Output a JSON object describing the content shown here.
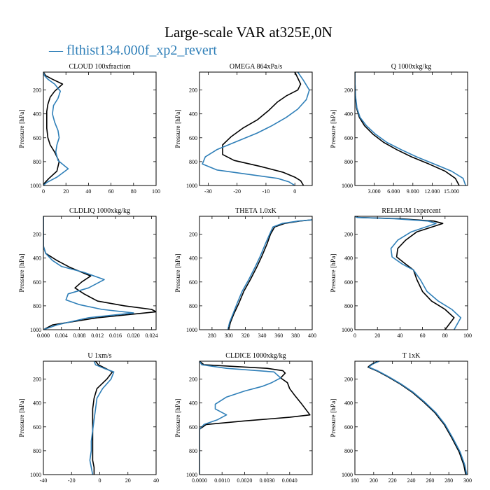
{
  "figure": {
    "title": "Large-scale VAR at325E,0N",
    "legend_text": "— flthist134.000f_xp2_revert",
    "legend_color": "#2f7fb8"
  },
  "chart_data": [
    {
      "type": "line",
      "title": "CLOUD  100xfraction",
      "ylabel": "Pressure [hPa]",
      "xlim": [
        0,
        100
      ],
      "ylim": [
        1000,
        50
      ],
      "xticks": [
        0,
        20,
        40,
        60,
        80,
        100
      ],
      "xtick_labels": [
        "0",
        "20",
        "40",
        "60",
        "80",
        "100"
      ],
      "yticks": [
        200,
        400,
        600,
        800,
        1000
      ],
      "series": [
        {
          "color": "#000000",
          "x": [
            0,
            2,
            8,
            17,
            10,
            6,
            4,
            3,
            3,
            3,
            4,
            6,
            10,
            14,
            12,
            5,
            1,
            0
          ],
          "y": [
            50,
            80,
            110,
            150,
            210,
            260,
            320,
            380,
            450,
            520,
            600,
            660,
            720,
            800,
            880,
            940,
            980,
            1000
          ]
        },
        {
          "color": "#2f7fb8",
          "x": [
            0,
            1,
            4,
            10,
            15,
            13,
            9,
            8,
            10,
            13,
            14,
            12,
            11,
            13,
            22,
            12,
            3,
            0
          ],
          "y": [
            50,
            80,
            110,
            150,
            210,
            270,
            330,
            400,
            470,
            540,
            600,
            660,
            720,
            790,
            860,
            930,
            975,
            1000
          ]
        }
      ]
    },
    {
      "type": "line",
      "title": "OMEGA  864xPa/s",
      "ylabel": "Pressure [hPa]",
      "xlim": [
        -33,
        6
      ],
      "ylim": [
        1000,
        50
      ],
      "xticks": [
        -30,
        -20,
        -10,
        0
      ],
      "xtick_labels": [
        "-30",
        "-20",
        "-10",
        "0"
      ],
      "yticks": [
        200,
        400,
        600,
        800,
        1000
      ],
      "series": [
        {
          "color": "#000000",
          "x": [
            0,
            1,
            2,
            1,
            -3,
            -6,
            -9,
            -13,
            -18,
            -22,
            -25,
            -25,
            -21,
            -12,
            -4,
            0,
            2,
            3
          ],
          "y": [
            50,
            100,
            150,
            200,
            250,
            300,
            370,
            450,
            520,
            590,
            660,
            740,
            790,
            840,
            890,
            930,
            960,
            1000
          ]
        },
        {
          "color": "#2f7fb8",
          "x": [
            1,
            3,
            5,
            4,
            1,
            -3,
            -8,
            -13,
            -20,
            -27,
            -31,
            -32,
            -27,
            -15,
            -6,
            -2,
            0
          ],
          "y": [
            50,
            120,
            200,
            280,
            360,
            430,
            500,
            560,
            630,
            700,
            760,
            820,
            870,
            910,
            940,
            970,
            1000
          ]
        }
      ]
    },
    {
      "type": "line",
      "title": "Q  1000xkg/kg",
      "ylabel": "Pressure [hPa]",
      "xlim": [
        0,
        17500
      ],
      "ylim": [
        1000,
        50
      ],
      "xticks": [
        3000,
        6000,
        9000,
        12000,
        15000
      ],
      "xtick_labels": [
        "3.000",
        "6.000",
        "9.000",
        "12.000",
        "15.000"
      ],
      "yticks": [
        200,
        400,
        600,
        800,
        1000
      ],
      "series": [
        {
          "color": "#000000",
          "x": [
            0,
            20,
            80,
            250,
            700,
            1500,
            2800,
            4500,
            6500,
            8800,
            11500,
            14000,
            15600,
            16200
          ],
          "y": [
            50,
            150,
            250,
            350,
            430,
            500,
            570,
            640,
            700,
            760,
            820,
            880,
            940,
            1000
          ]
        },
        {
          "color": "#2f7fb8",
          "x": [
            0,
            25,
            100,
            320,
            800,
            1800,
            3200,
            5000,
            7200,
            9600,
            12300,
            15000,
            16800,
            17200
          ],
          "y": [
            50,
            150,
            250,
            350,
            430,
            500,
            570,
            640,
            700,
            760,
            820,
            880,
            940,
            1000
          ]
        }
      ]
    },
    {
      "type": "line",
      "title": "CLDLIQ  1000xkg/kg",
      "ylabel": "Pressure [hPa]",
      "xlim": [
        0,
        0.025
      ],
      "ylim": [
        1000,
        50
      ],
      "xticks": [
        0,
        0.004,
        0.008,
        0.012,
        0.016,
        0.02,
        0.024
      ],
      "xtick_labels": [
        "0.000",
        "0.004",
        "0.008",
        "0.012",
        "0.016",
        "0.020",
        "0.024"
      ],
      "yticks": [
        200,
        400,
        600,
        800,
        1000
      ],
      "series": [
        {
          "color": "#000000",
          "x": [
            0,
            0,
            0.0005,
            0.003,
            0.006,
            0.0105,
            0.0085,
            0.007,
            0.009,
            0.012,
            0.018,
            0.024,
            0.025,
            0.012,
            0.002,
            0
          ],
          "y": [
            50,
            300,
            360,
            420,
            480,
            550,
            600,
            650,
            700,
            760,
            800,
            830,
            850,
            900,
            960,
            1000
          ]
        },
        {
          "color": "#2f7fb8",
          "x": [
            0,
            0,
            0.0005,
            0.002,
            0.004,
            0.009,
            0.0135,
            0.01,
            0.0055,
            0.005,
            0.008,
            0.013,
            0.02,
            0.01,
            0.003,
            0
          ],
          "y": [
            50,
            300,
            360,
            420,
            470,
            520,
            580,
            650,
            700,
            750,
            790,
            830,
            860,
            900,
            960,
            1000
          ]
        }
      ]
    },
    {
      "type": "line",
      "title": "THETA  1.0xK",
      "ylabel": "Pressure [hPa]",
      "xlim": [
        265,
        400
      ],
      "ylim": [
        1000,
        50
      ],
      "xticks": [
        280,
        300,
        320,
        340,
        360,
        380,
        400
      ],
      "xtick_labels": [
        "280",
        "300",
        "320",
        "340",
        "360",
        "380",
        "400"
      ],
      "yticks": [
        200,
        400,
        600,
        800,
        1000
      ],
      "series": [
        {
          "color": "#000000",
          "x": [
            400,
            385,
            367,
            355,
            350,
            346,
            340,
            334,
            326,
            318,
            312,
            306,
            302,
            300
          ],
          "y": [
            80,
            90,
            110,
            140,
            200,
            280,
            380,
            470,
            580,
            680,
            780,
            870,
            940,
            1000
          ]
        },
        {
          "color": "#2f7fb8",
          "x": [
            400,
            383,
            364,
            353,
            349,
            344,
            338,
            332,
            324,
            316,
            310,
            305,
            301,
            299
          ],
          "y": [
            80,
            90,
            110,
            140,
            200,
            280,
            380,
            470,
            580,
            680,
            780,
            870,
            940,
            1000
          ]
        }
      ]
    },
    {
      "type": "line",
      "title": "RELHUM  1xpercent",
      "ylabel": "Pressure [hPa]",
      "xlim": [
        0,
        100
      ],
      "ylim": [
        1000,
        50
      ],
      "xticks": [
        0,
        20,
        40,
        60,
        80,
        100
      ],
      "xtick_labels": [
        "0",
        "20",
        "40",
        "60",
        "80",
        "100"
      ],
      "yticks": [
        200,
        400,
        600,
        800,
        1000
      ],
      "series": [
        {
          "color": "#000000",
          "x": [
            0,
            3,
            40,
            70,
            78,
            55,
            45,
            38,
            37,
            45,
            52,
            55,
            60,
            68,
            80,
            88,
            80
          ],
          "y": [
            50,
            60,
            70,
            90,
            110,
            180,
            250,
            320,
            390,
            450,
            500,
            580,
            680,
            760,
            830,
            900,
            1000
          ]
        },
        {
          "color": "#2f7fb8",
          "x": [
            0,
            2,
            35,
            65,
            72,
            50,
            38,
            32,
            33,
            42,
            52,
            58,
            64,
            74,
            86,
            94,
            88
          ],
          "y": [
            50,
            60,
            70,
            90,
            110,
            180,
            250,
            320,
            390,
            450,
            500,
            580,
            680,
            760,
            830,
            900,
            1000
          ]
        }
      ]
    },
    {
      "type": "line",
      "title": "U  1xm/s",
      "ylabel": "Pressure [hPa]",
      "xlim": [
        -40,
        40
      ],
      "ylim": [
        1000,
        50
      ],
      "xticks": [
        -40,
        -20,
        0,
        20,
        40
      ],
      "xtick_labels": [
        "-40",
        "-20",
        "0",
        "20",
        "40"
      ],
      "yticks": [
        200,
        400,
        600,
        800,
        1000
      ],
      "series": [
        {
          "color": "#000000",
          "x": [
            -3,
            -1,
            4,
            9,
            5,
            -2,
            -4,
            -5,
            -5,
            -5,
            -5,
            -5,
            -5,
            -4,
            -4
          ],
          "y": [
            50,
            80,
            110,
            140,
            200,
            280,
            360,
            450,
            540,
            630,
            720,
            800,
            880,
            940,
            1000
          ]
        },
        {
          "color": "#2f7fb8",
          "x": [
            -4,
            -3,
            3,
            10,
            8,
            2,
            -2,
            -3,
            -4,
            -5,
            -6,
            -6,
            -7,
            -6,
            -5
          ],
          "y": [
            50,
            80,
            110,
            140,
            200,
            280,
            360,
            450,
            540,
            630,
            720,
            800,
            880,
            940,
            1000
          ]
        }
      ]
    },
    {
      "type": "line",
      "title": "CLDICE  1000xkg/kg",
      "ylabel": "Pressure [hPa]",
      "xlim": [
        0,
        0.005
      ],
      "ylim": [
        1000,
        50
      ],
      "xticks": [
        0,
        0.001,
        0.002,
        0.003,
        0.004
      ],
      "xtick_labels": [
        "0.0000",
        "0.0010",
        "0.0020",
        "0.0030",
        "0.0040"
      ],
      "yticks": [
        200,
        400,
        600,
        800,
        1000
      ],
      "series": [
        {
          "color": "#000000",
          "x": [
            0,
            0.0002,
            0.003,
            0.0037,
            0.0038,
            0.0036,
            0.0039,
            0.004,
            0.0042,
            0.0045,
            0.0049,
            0.004,
            0.002,
            0.0003,
            0,
            0
          ],
          "y": [
            50,
            80,
            110,
            130,
            150,
            190,
            230,
            280,
            330,
            400,
            500,
            520,
            550,
            580,
            620,
            1000
          ]
        },
        {
          "color": "#2f7fb8",
          "x": [
            0,
            0.0001,
            0.0012,
            0.0033,
            0.0036,
            0.0032,
            0.0028,
            0.002,
            0.0012,
            0.0007,
            0.0007,
            0.0012,
            0.0008,
            0.0002,
            0,
            0
          ],
          "y": [
            50,
            80,
            110,
            140,
            190,
            230,
            260,
            300,
            350,
            410,
            450,
            500,
            540,
            580,
            620,
            1000
          ]
        }
      ]
    },
    {
      "type": "line",
      "title": "T  1xK",
      "ylabel": "Pressure [hPa]",
      "xlim": [
        180,
        300
      ],
      "ylim": [
        1000,
        50
      ],
      "xticks": [
        180,
        200,
        220,
        240,
        260,
        280,
        300
      ],
      "xtick_labels": [
        "180",
        "200",
        "220",
        "240",
        "260",
        "280",
        "300"
      ],
      "yticks": [
        200,
        400,
        600,
        800,
        1000
      ],
      "series": [
        {
          "color": "#000000",
          "x": [
            205,
            199,
            196,
            194,
            203,
            215,
            228,
            241,
            253,
            265,
            275,
            283,
            291,
            296,
            298
          ],
          "y": [
            50,
            70,
            85,
            100,
            130,
            180,
            240,
            310,
            390,
            480,
            580,
            690,
            810,
            920,
            1000
          ]
        },
        {
          "color": "#2f7fb8",
          "x": [
            206,
            200,
            197,
            195,
            204,
            216,
            229,
            242,
            254,
            266,
            276,
            284,
            292,
            297,
            299
          ],
          "y": [
            50,
            70,
            85,
            100,
            130,
            180,
            240,
            310,
            390,
            480,
            580,
            690,
            810,
            920,
            1000
          ]
        }
      ]
    }
  ]
}
